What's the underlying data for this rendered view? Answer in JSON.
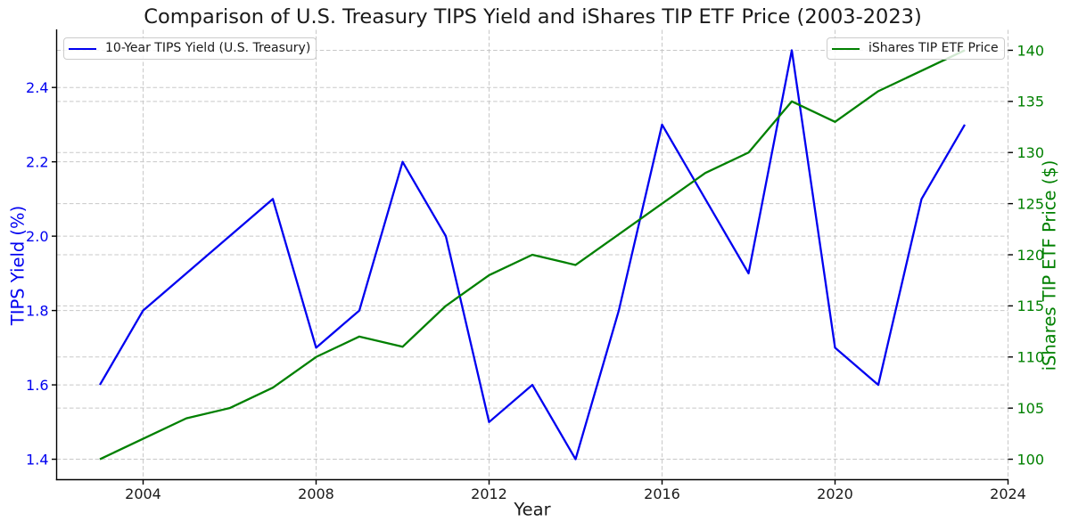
{
  "title": "Comparison of U.S. Treasury TIPS Yield and iShares TIP ETF Price (2003-2023)",
  "chart_data": {
    "type": "line",
    "title": "Comparison of U.S. Treasury TIPS Yield and iShares TIP ETF Price (2003-2023)",
    "xlabel": "Year",
    "ylabel_left": "TIPS Yield (%)",
    "ylabel_right": "iShares TIP ETF Price ($)",
    "x": [
      2003,
      2004,
      2005,
      2006,
      2007,
      2008,
      2009,
      2010,
      2011,
      2012,
      2013,
      2014,
      2015,
      2016,
      2017,
      2018,
      2019,
      2020,
      2021,
      2022,
      2023
    ],
    "series": [
      {
        "name": "10-Year TIPS Yield (U.S. Treasury)",
        "axis": "left",
        "color": "#0000f0",
        "values": [
          1.6,
          1.8,
          1.9,
          2.0,
          2.1,
          1.7,
          1.8,
          2.2,
          2.0,
          1.5,
          1.6,
          1.4,
          1.8,
          2.3,
          2.1,
          1.9,
          2.5,
          1.7,
          1.6,
          2.1,
          2.3
        ]
      },
      {
        "name": "iShares TIP ETF Price",
        "axis": "right",
        "color": "#008000",
        "values": [
          100,
          102,
          104,
          105,
          107,
          110,
          112,
          111,
          115,
          118,
          120,
          119,
          122,
          125,
          128,
          130,
          135,
          133,
          136,
          138,
          140
        ]
      }
    ],
    "xlim": [
      2002,
      2024
    ],
    "ylim_left": [
      1.345,
      2.555
    ],
    "ylim_right": [
      98,
      142
    ],
    "xticks": [
      2004,
      2008,
      2012,
      2016,
      2020,
      2024
    ],
    "yticks_left": [
      "1.4",
      "1.6",
      "1.8",
      "2.0",
      "2.2",
      "2.4"
    ],
    "yticks_right": [
      100,
      105,
      110,
      115,
      120,
      125,
      130,
      135,
      140
    ],
    "grid": true,
    "grid_style": "dashed",
    "legend_left_position": "upper left",
    "legend_right_position": "upper right"
  },
  "legends": {
    "tips": "10-Year TIPS Yield (U.S. Treasury)",
    "etf": "iShares TIP ETF Price"
  },
  "colors": {
    "tips_line": "#0000f0",
    "etf_line": "#008000",
    "grid": "#c8c8c8",
    "spine": "#000000",
    "title_text": "#1a1a1a",
    "xtick_text": "#1a1a1a",
    "legend_text": "#1a1a1a"
  }
}
